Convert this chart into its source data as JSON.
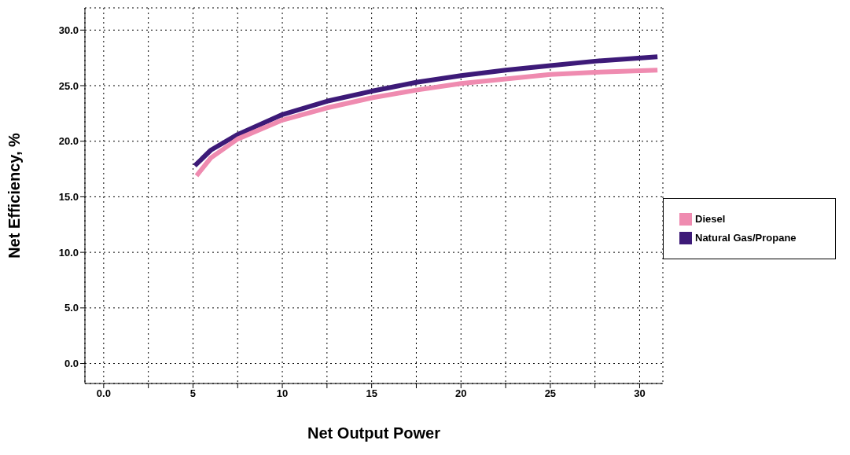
{
  "chart_data": {
    "type": "line",
    "xlabel": "Net Output Power",
    "ylabel": "Net Efficiency, %",
    "xlim": [
      -1.05,
      31.3
    ],
    "ylim": [
      -1.8,
      32
    ],
    "xticks": [
      {
        "value": 0,
        "label": "0.0"
      },
      {
        "value": 2.5,
        "label": null
      },
      5,
      {
        "value": 7.5,
        "label": null
      },
      10,
      {
        "value": 12.5,
        "label": null
      },
      15,
      {
        "value": 17.5,
        "label": null
      },
      20,
      {
        "value": 22.5,
        "label": null
      },
      25,
      {
        "value": 27.5,
        "label": null
      },
      30
    ],
    "yticks": [
      {
        "value": 0,
        "label": "0.0"
      },
      {
        "value": 5,
        "label": "5.0"
      },
      {
        "value": 10,
        "label": "10.0"
      },
      {
        "value": 15,
        "label": "15.0"
      },
      {
        "value": 20,
        "label": "20.0"
      },
      {
        "value": 25,
        "label": "25.0"
      },
      {
        "value": 30,
        "label": "30.0"
      }
    ],
    "grid": true,
    "legend": "right",
    "marker": "none",
    "line_style": "solid",
    "series": [
      {
        "name": "Natural Gas/Propane",
        "color": "#3d1a78",
        "x": [
          5.1,
          6,
          7.5,
          10,
          12.5,
          15,
          17.5,
          20,
          22.5,
          25,
          27.5,
          31
        ],
        "values": [
          17.8,
          19.2,
          20.6,
          22.4,
          23.6,
          24.5,
          25.3,
          25.9,
          26.4,
          26.8,
          27.2,
          27.6
        ]
      },
      {
        "name": "Diesel",
        "color": "#ef8bb0",
        "x": [
          5.2,
          6,
          7.5,
          10,
          12.5,
          15,
          17.5,
          20,
          22.5,
          25,
          27.5,
          31
        ],
        "values": [
          16.9,
          18.5,
          20.2,
          21.9,
          23.0,
          23.9,
          24.6,
          25.2,
          25.6,
          26.0,
          26.2,
          26.4
        ]
      }
    ]
  }
}
